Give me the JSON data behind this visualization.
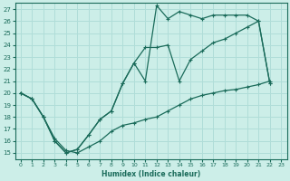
{
  "xlabel": "Humidex (Indice chaleur)",
  "bg_color": "#cceee8",
  "grid_color": "#b0ddd8",
  "line_color": "#1a6b5a",
  "xlim": [
    -0.5,
    23.5
  ],
  "ylim": [
    14.5,
    27.5
  ],
  "yticks": [
    15,
    16,
    17,
    18,
    19,
    20,
    21,
    22,
    23,
    24,
    25,
    26,
    27
  ],
  "xticks": [
    0,
    1,
    2,
    3,
    4,
    5,
    6,
    7,
    8,
    9,
    10,
    11,
    12,
    13,
    14,
    15,
    16,
    17,
    18,
    19,
    20,
    21,
    22,
    23
  ],
  "series1_x": [
    0,
    1,
    2,
    3,
    4,
    5,
    6,
    7,
    8,
    9,
    10,
    11,
    12,
    13,
    14,
    15,
    16,
    17,
    18,
    19,
    20,
    21,
    22
  ],
  "series1_y": [
    20.0,
    19.5,
    18.0,
    16.0,
    15.0,
    15.3,
    16.5,
    17.8,
    18.5,
    20.8,
    22.5,
    21.0,
    27.3,
    26.2,
    26.8,
    26.5,
    26.2,
    26.5,
    26.5,
    26.5,
    26.5,
    26.0,
    20.8
  ],
  "series2_x": [
    0,
    1,
    2,
    3,
    4,
    5,
    6,
    7,
    8,
    9,
    10,
    11,
    12,
    13,
    14,
    15,
    16,
    17,
    18,
    19,
    20,
    21,
    22
  ],
  "series2_y": [
    20.0,
    19.5,
    18.0,
    16.0,
    15.0,
    15.3,
    16.5,
    17.8,
    18.5,
    20.8,
    22.5,
    23.8,
    23.8,
    24.0,
    21.0,
    22.8,
    23.5,
    24.2,
    24.5,
    25.0,
    25.5,
    26.0,
    20.8
  ],
  "series3_x": [
    0,
    1,
    2,
    3,
    4,
    5,
    6,
    7,
    8,
    9,
    10,
    11,
    12,
    13,
    14,
    15,
    16,
    17,
    18,
    19,
    20,
    21,
    22
  ],
  "series3_y": [
    20.0,
    19.5,
    18.0,
    16.2,
    15.2,
    15.0,
    15.5,
    16.0,
    16.8,
    17.3,
    17.5,
    17.8,
    18.0,
    18.5,
    19.0,
    19.5,
    19.8,
    20.0,
    20.2,
    20.3,
    20.5,
    20.7,
    21.0
  ]
}
